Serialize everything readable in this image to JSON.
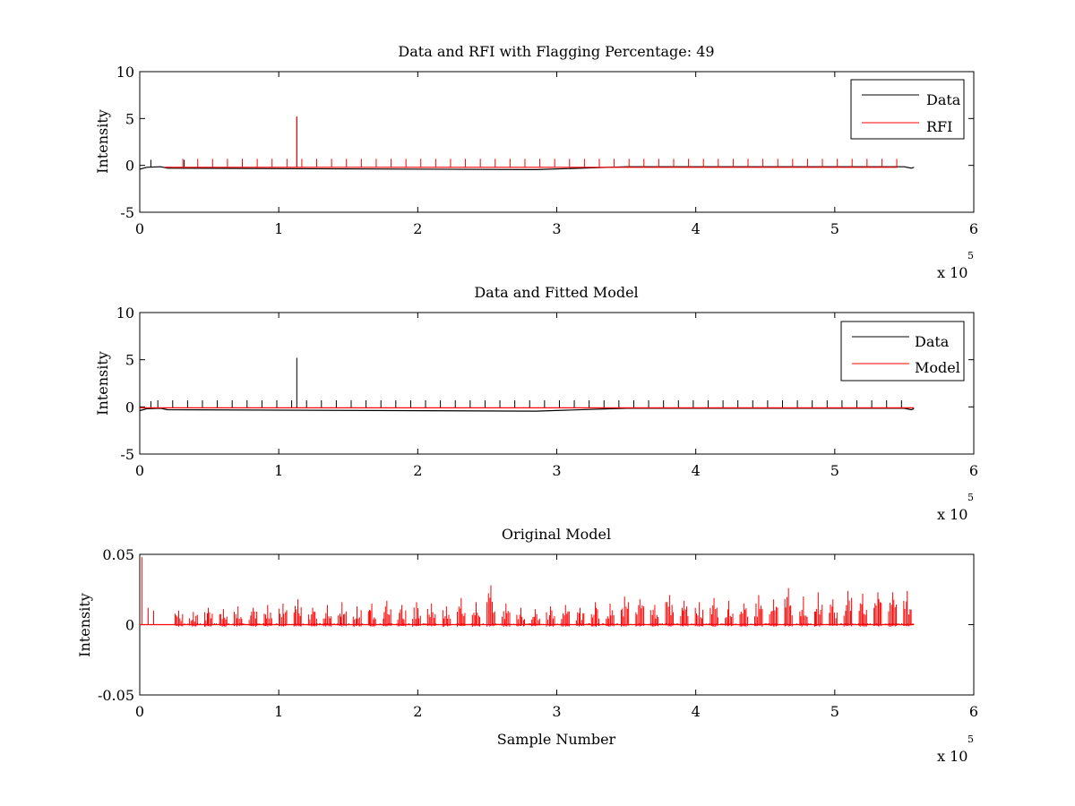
{
  "chart_data": [
    {
      "type": "line",
      "title": "Data and RFI with Flagging Percentage: 49",
      "xlabel": "",
      "ylabel": "Intensity",
      "xlim": [
        0,
        6
      ],
      "ylim": [
        -5,
        10
      ],
      "x_ticks": [
        "0",
        "1",
        "2",
        "3",
        "4",
        "5",
        "6"
      ],
      "y_ticks": [
        "-5",
        "0",
        "5",
        "10"
      ],
      "x_multiplier": "x 10",
      "x_exponent": "5",
      "legend": [
        "Data",
        "RFI"
      ],
      "legend_position": "top-right",
      "series": [
        {
          "name": "Data",
          "color": "#000000",
          "baseline": -0.15,
          "extent": [
            0,
            5.57
          ],
          "points": [
            [
              0,
              -0.4
            ],
            [
              0.05,
              -0.2
            ],
            [
              0.15,
              -0.15
            ],
            [
              0.2,
              -0.3
            ],
            [
              2.85,
              -0.45
            ],
            [
              3.5,
              -0.15
            ],
            [
              5.5,
              -0.15
            ],
            [
              5.55,
              -0.3
            ],
            [
              5.57,
              -0.2
            ]
          ],
          "spikes": [
            [
              0.08,
              0.6
            ],
            [
              0.32,
              0.6
            ],
            [
              1.13,
              5.2
            ]
          ]
        },
        {
          "name": "RFI",
          "color": "#ff0000",
          "baseline": -0.2,
          "extent": [
            0.18,
            5.45
          ],
          "spike_spacing": 0.107,
          "spike_height": 0.7,
          "spikes": [
            [
              1.13,
              5.2
            ]
          ]
        }
      ]
    },
    {
      "type": "line",
      "title": "Data and Fitted Model",
      "xlabel": "",
      "ylabel": "Intensity",
      "xlim": [
        0,
        6
      ],
      "ylim": [
        -5,
        10
      ],
      "x_ticks": [
        "0",
        "1",
        "2",
        "3",
        "4",
        "5",
        "6"
      ],
      "y_ticks": [
        "-5",
        "0",
        "5",
        "10"
      ],
      "x_multiplier": "x 10",
      "x_exponent": "5",
      "legend": [
        "Data",
        "Model"
      ],
      "legend_position": "top-right",
      "series": [
        {
          "name": "Data",
          "color": "#000000",
          "baseline": -0.15,
          "extent": [
            0,
            5.57
          ],
          "points": [
            [
              0,
              -0.4
            ],
            [
              0.05,
              -0.2
            ],
            [
              0.15,
              -0.15
            ],
            [
              0.2,
              -0.3
            ],
            [
              2.85,
              -0.45
            ],
            [
              3.5,
              -0.15
            ],
            [
              5.5,
              -0.15
            ],
            [
              5.55,
              -0.3
            ],
            [
              5.57,
              -0.2
            ]
          ],
          "spike_spacing": 0.107,
          "spike_height": 0.7,
          "spikes": [
            [
              0.08,
              0.6
            ],
            [
              1.13,
              5.2
            ]
          ]
        },
        {
          "name": "Model",
          "color": "#ff0000",
          "baseline": -0.1,
          "extent": [
            0,
            5.57
          ],
          "points": [
            [
              0,
              -0.1
            ],
            [
              5.57,
              -0.1
            ]
          ]
        }
      ]
    },
    {
      "type": "line",
      "title": "Original Model",
      "xlabel": "Sample Number",
      "ylabel": "Intensity",
      "xlim": [
        0,
        6
      ],
      "ylim": [
        -0.05,
        0.05
      ],
      "x_ticks": [
        "0",
        "1",
        "2",
        "3",
        "4",
        "5",
        "6"
      ],
      "y_ticks": [
        "-0.05",
        "0",
        "0.05"
      ],
      "x_multiplier": "x 10",
      "x_exponent": "5",
      "legend": [],
      "series": [
        {
          "color": "#ff0000",
          "baseline": 0,
          "extent": [
            0,
            5.57
          ],
          "noise_start": 0.28,
          "burst_spacing": 0.107,
          "burst_peaks": [
            0.01,
            0.009,
            0.012,
            0.011,
            0.013,
            0.012,
            0.014,
            0.015,
            0.018,
            0.012,
            0.014,
            0.016,
            0.013,
            0.015,
            0.017,
            0.014,
            0.016,
            0.015,
            0.013,
            0.019,
            0.016,
            0.028,
            0.015,
            0.012,
            0.011,
            0.013,
            0.014,
            0.012,
            0.016,
            0.015,
            0.02,
            0.018,
            0.014,
            0.021,
            0.017,
            0.016,
            0.019,
            0.017,
            0.015,
            0.021,
            0.018,
            0.026,
            0.02,
            0.023,
            0.018,
            0.024,
            0.022,
            0.023,
            0.023,
            0.024
          ],
          "spikes": [
            [
              0.015,
              0.048
            ],
            [
              0.06,
              0.012
            ],
            [
              0.1,
              0.01
            ]
          ]
        }
      ]
    }
  ]
}
